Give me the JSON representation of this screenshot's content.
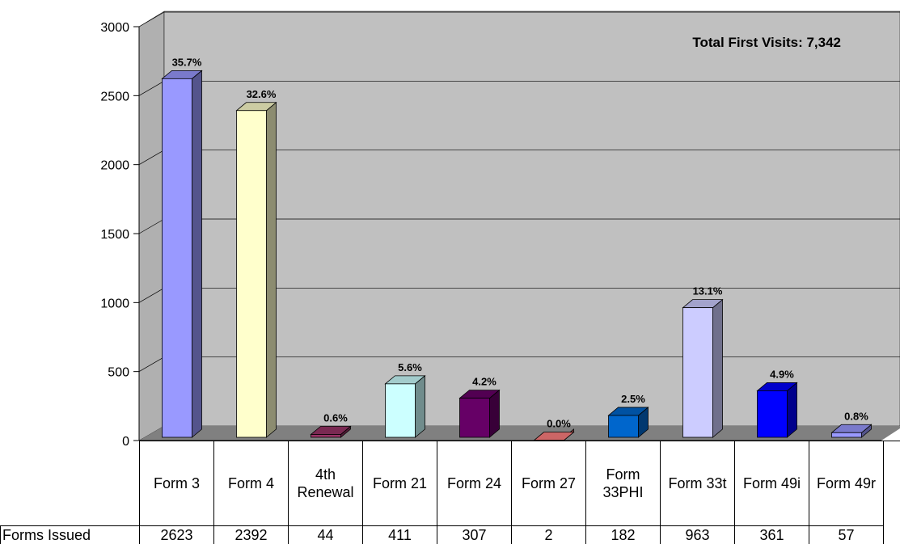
{
  "chart_data": {
    "type": "bar",
    "annotation": "Total First Visits: 7,342",
    "categories": [
      "Form 3",
      "Form 4",
      "4th Renewal",
      "Form 21",
      "Form 24",
      "Form 27",
      "Form 33PHI",
      "Form 33t",
      "Form 49i",
      "Form 49r"
    ],
    "series": [
      {
        "name": "Forms Issued",
        "colors": [
          "#9999ff",
          "#ffffcc",
          "#993366",
          "#ccffff",
          "#660066",
          "#ff8080",
          "#0066cc",
          "#ccccff",
          "#0000ff",
          "#9999ff"
        ],
        "values": [
          2623,
          2392,
          44,
          411,
          307,
          2,
          182,
          963,
          361,
          57
        ],
        "percentage_labels": [
          "35.7%",
          "32.6%",
          "0.6%",
          "5.6%",
          "4.2%",
          "0.0%",
          "2.5%",
          "13.1%",
          "4.9%",
          "0.8%"
        ]
      }
    ],
    "ylim": [
      0,
      3000
    ],
    "yticks": [
      0,
      500,
      1000,
      1500,
      2000,
      2500,
      3000
    ],
    "grid": true
  }
}
